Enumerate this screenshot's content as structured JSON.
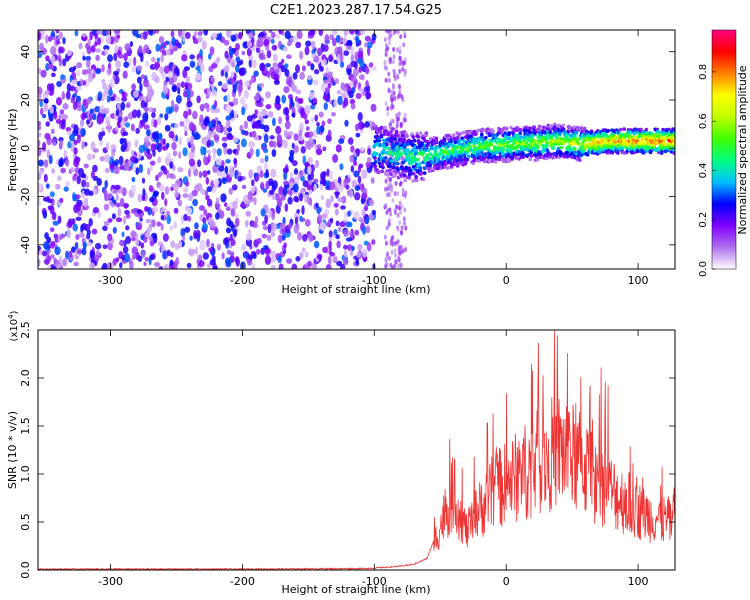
{
  "title": "C2E1.2023.287.17.54.G25",
  "chart_data": [
    {
      "type": "heatmap",
      "xlabel": "Height of straight line (km)",
      "ylabel": "Frequency (Hz)",
      "xlim": [
        -355,
        128
      ],
      "ylim": [
        -50,
        49
      ],
      "x_ticks": [
        -300,
        -200,
        -100,
        0,
        100
      ],
      "x_tick_labels": [
        "-300",
        "-200",
        "-100",
        "0",
        "100"
      ],
      "y_ticks": [
        -40,
        -20,
        0,
        20,
        40
      ],
      "y_tick_labels": [
        "-40",
        "-20",
        "0",
        "20",
        "40"
      ],
      "noise_region_km": [
        -355,
        -100
      ],
      "gap_km": [
        -100,
        -80
      ],
      "signal_trace": {
        "x": [
          -100,
          -90,
          -80,
          -70,
          -60,
          -50,
          -40,
          -30,
          -20,
          -10,
          0,
          10,
          20,
          30,
          40,
          50,
          60,
          70,
          80,
          90,
          100,
          110,
          120,
          128
        ],
        "y": [
          0,
          -1,
          -3,
          -4,
          -3,
          -2,
          -1,
          0,
          1,
          1,
          1.5,
          2,
          2,
          2.5,
          3,
          2,
          2,
          2.5,
          3,
          3,
          3,
          3,
          3,
          3
        ]
      },
      "colorbar": {
        "label": "Normalized spectral amplitude",
        "range": [
          0.0,
          0.97
        ],
        "ticks": [
          0.0,
          0.2,
          0.4,
          0.6,
          0.8
        ],
        "tick_labels": [
          "0.0",
          "0.2",
          "0.4",
          "0.6",
          "0.8"
        ],
        "colors": [
          "#ffffff",
          "#b070f0",
          "#8000ff",
          "#0000ff",
          "#00c0ff",
          "#00ff80",
          "#40ff00",
          "#c0ff00",
          "#ffff00",
          "#ff8000",
          "#ff0000",
          "#ff0080"
        ]
      },
      "grid": false
    },
    {
      "type": "line",
      "xlabel": "Height of straight line (km)",
      "ylabel": "SNR (10 * v/v)",
      "y_multiplier": "(x10",
      "y_multiplier_exp": "4",
      "y_multiplier_close": ")",
      "xlim": [
        -355,
        128
      ],
      "ylim": [
        0,
        2.5
      ],
      "x_ticks": [
        -300,
        -200,
        -100,
        0,
        100
      ],
      "x_tick_labels": [
        "-300",
        "-200",
        "-100",
        "0",
        "100"
      ],
      "y_ticks": [
        0.0,
        0.5,
        1.0,
        1.5,
        2.0,
        2.5
      ],
      "y_tick_labels": [
        "0.0",
        "0.5",
        "1.0",
        "1.5",
        "2.0",
        "2.5"
      ],
      "series": [
        {
          "color": "#ee3333",
          "x": [
            -355,
            -300,
            -200,
            -110,
            -100,
            -90,
            -80,
            -70,
            -60,
            -55,
            -50,
            -45,
            -40,
            -35,
            -30,
            -25,
            -20,
            -15,
            -10,
            -5,
            0,
            5,
            10,
            15,
            20,
            25,
            30,
            35,
            40,
            45,
            50,
            55,
            60,
            65,
            70,
            75,
            80,
            85,
            90,
            95,
            100,
            105,
            110,
            115,
            120,
            128
          ],
          "y": [
            0.01,
            0.01,
            0.01,
            0.015,
            0.02,
            0.03,
            0.04,
            0.06,
            0.12,
            0.3,
            0.5,
            0.7,
            0.9,
            0.65,
            0.45,
            0.55,
            0.7,
            0.8,
            0.9,
            0.95,
            1.0,
            1.05,
            1.1,
            1.15,
            1.2,
            1.25,
            1.3,
            1.35,
            1.4,
            1.35,
            1.3,
            1.25,
            1.2,
            1.1,
            1.0,
            0.95,
            0.9,
            0.85,
            0.8,
            0.75,
            0.7,
            0.65,
            0.62,
            0.6,
            0.58,
            0.55
          ]
        }
      ],
      "grid": false
    }
  ]
}
